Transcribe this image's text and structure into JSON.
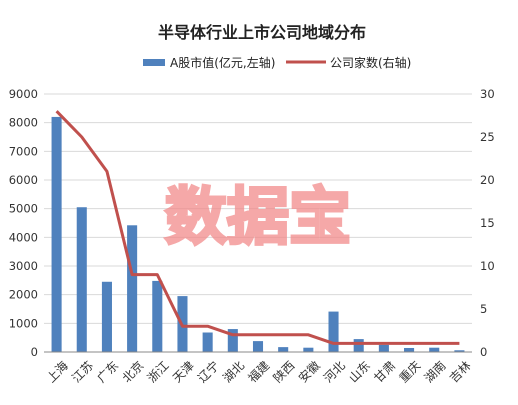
{
  "chart_data": {
    "type": "bar",
    "title": "半导体行业上市公司地域分布",
    "categories": [
      "上海",
      "江苏",
      "广东",
      "北京",
      "浙江",
      "天津",
      "辽宁",
      "湖北",
      "福建",
      "陕西",
      "安徽",
      "河北",
      "山东",
      "甘肃",
      "重庆",
      "湖南",
      "吉林"
    ],
    "series": [
      {
        "name": "A股市值(亿元,左轴)",
        "type": "bar",
        "axis": "left",
        "values": [
          8200,
          5050,
          2450,
          4420,
          2480,
          1950,
          680,
          800,
          380,
          170,
          150,
          1410,
          450,
          250,
          140,
          150,
          60
        ]
      },
      {
        "name": "公司家数(右轴)",
        "type": "line",
        "axis": "right",
        "values": [
          28,
          25,
          21,
          9,
          9,
          3,
          3,
          2,
          2,
          2,
          2,
          1,
          1,
          1,
          1,
          1,
          1
        ]
      }
    ],
    "ylim_left": [
      0,
      9000
    ],
    "ylim_right": [
      0,
      30
    ],
    "yticks_left": [
      "0",
      "1000",
      "2000",
      "3000",
      "4000",
      "5000",
      "6000",
      "7000",
      "8000",
      "9000"
    ],
    "yticks_right": [
      "0",
      "5",
      "10",
      "15",
      "20",
      "25",
      "30"
    ],
    "grid": "horizontal",
    "legend_position": "top",
    "colors": {
      "bar": "#4f81bd",
      "line": "#c0504d",
      "grid": "#d9d9d9",
      "axis": "#888888"
    }
  },
  "watermark": {
    "text": "数据宝",
    "color": "#f28b8b"
  }
}
